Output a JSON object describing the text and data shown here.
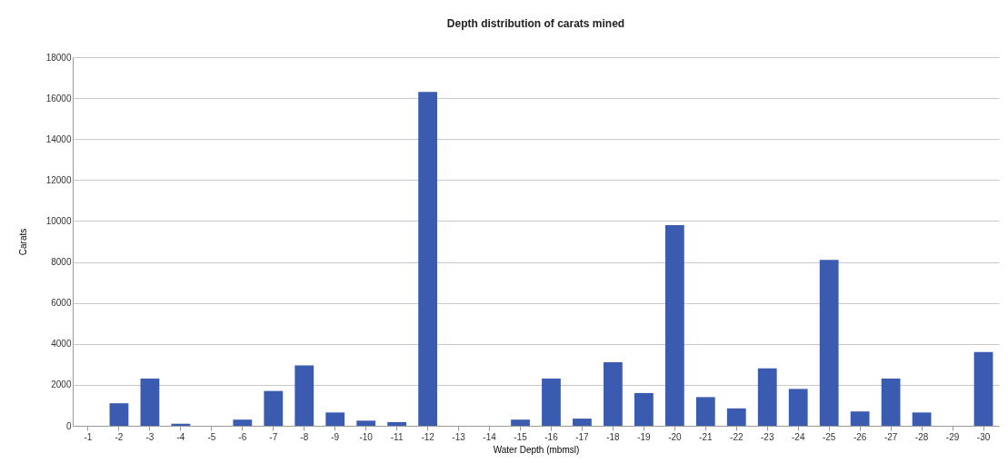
{
  "chart_data": {
    "type": "bar",
    "title": "Depth distribution of carats mined",
    "xlabel": "Water Depth (mbmsl)",
    "ylabel": "Carats",
    "categories": [
      "-1",
      "-2",
      "-3",
      "-4",
      "-5",
      "-6",
      "-7",
      "-8",
      "-9",
      "-10",
      "-11",
      "-12",
      "-13",
      "-14",
      "-15",
      "-16",
      "-17",
      "-18",
      "-19",
      "-20",
      "-21",
      "-22",
      "-23",
      "-24",
      "-25",
      "-26",
      "-27",
      "-28",
      "-29",
      "-30"
    ],
    "values": [
      0,
      1100,
      2300,
      100,
      0,
      300,
      1700,
      2950,
      650,
      250,
      180,
      16300,
      0,
      0,
      300,
      2300,
      350,
      3100,
      1600,
      9800,
      1400,
      850,
      2800,
      1800,
      8100,
      700,
      2300,
      650,
      0,
      3600
    ],
    "color": "#3a5bb0",
    "ylim": [
      0,
      18000
    ],
    "yticks": [
      0,
      2000,
      4000,
      6000,
      8000,
      10000,
      12000,
      14000,
      16000,
      18000
    ],
    "grid": "y"
  }
}
